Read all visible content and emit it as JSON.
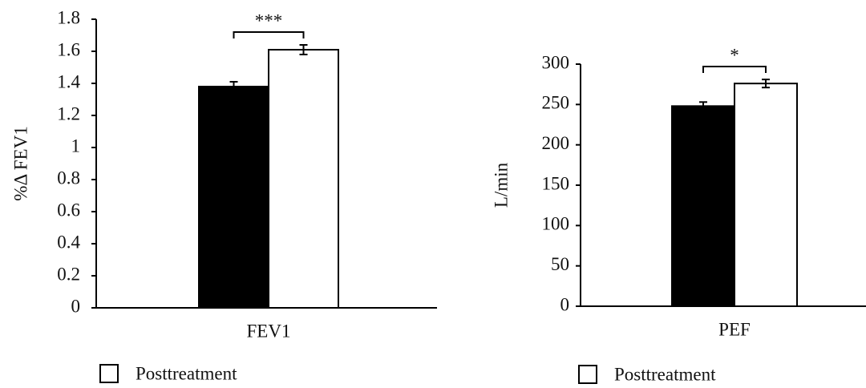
{
  "chart_data": [
    {
      "type": "bar",
      "y_label": "%Δ FEV1",
      "categories": [
        "FEV1"
      ],
      "series": [
        {
          "color": "#000000",
          "values": [
            1.38
          ],
          "errors": [
            0.03
          ]
        },
        {
          "name": "Posttreatment",
          "color": "#ffffff",
          "values": [
            1.61
          ],
          "errors": [
            0.03
          ]
        }
      ],
      "ylim": [
        0,
        1.8
      ],
      "yticks": [
        0,
        0.2,
        0.4,
        0.6,
        0.8,
        1,
        1.2,
        1.4,
        1.6,
        1.8
      ],
      "annotation": "***"
    },
    {
      "type": "bar",
      "y_label": "L/min",
      "categories": [
        "PEF"
      ],
      "series": [
        {
          "color": "#000000",
          "values": [
            248
          ],
          "errors": [
            5
          ]
        },
        {
          "name": "Posttreatment",
          "color": "#ffffff",
          "values": [
            276
          ],
          "errors": [
            5
          ]
        }
      ],
      "ylim": [
        0,
        300
      ],
      "yticks": [
        0,
        50,
        100,
        150,
        200,
        250,
        300
      ],
      "annotation": "*"
    }
  ]
}
